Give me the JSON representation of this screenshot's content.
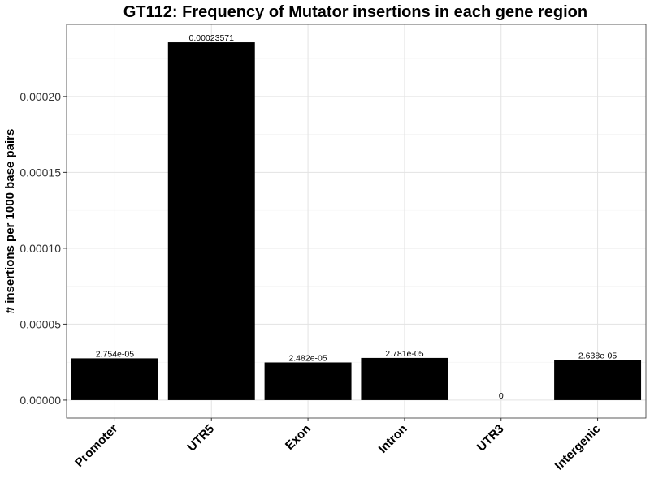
{
  "chart_data": {
    "type": "bar",
    "title": "GT112: Frequency of Mutator insertions in each gene region",
    "xlabel": "",
    "ylabel": "# insertions per 1000 base pairs",
    "categories": [
      "Promoter",
      "UTR5",
      "Exon",
      "Intron",
      "UTR3",
      "Intergenic"
    ],
    "values": [
      2.754e-05,
      0.00023571,
      2.482e-05,
      2.781e-05,
      0,
      2.638e-05
    ],
    "data_labels": [
      "2.754e-05",
      "0.00023571",
      "2.482e-05",
      "2.781e-05",
      "0",
      "2.638e-05"
    ],
    "ylim": [
      -1.18e-05,
      0.0002475
    ],
    "yticks": [
      0,
      5e-05,
      0.0001,
      0.00015,
      0.0002
    ],
    "ytick_labels": [
      "0.00000",
      "0.00005",
      "0.00010",
      "0.00015",
      "0.00020"
    ],
    "bar_color": "#000000",
    "grid": true,
    "legend": "none"
  }
}
